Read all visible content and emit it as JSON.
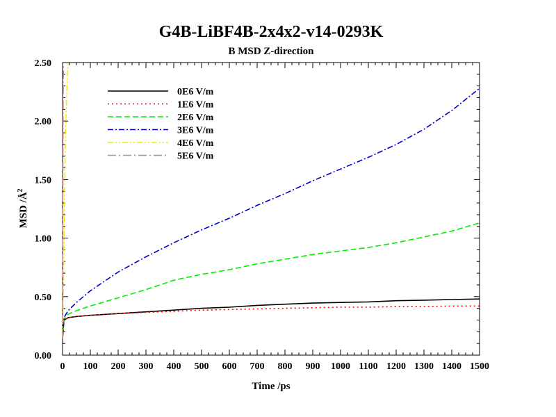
{
  "chart_data": {
    "type": "line",
    "title": "G4B-LiBF4B-2x4x2-v14-0293K",
    "subtitle": "B MSD Z-direction",
    "xlabel": "Time /ps",
    "ylabel": "MSD /Å",
    "ylabel_superscript": "2",
    "xlim": [
      0,
      1500
    ],
    "ylim": [
      0,
      2.5
    ],
    "x_ticks": [
      0,
      100,
      200,
      300,
      400,
      500,
      600,
      700,
      800,
      900,
      1000,
      1100,
      1200,
      1300,
      1400,
      1500
    ],
    "x_tick_labels": [
      "0",
      "100",
      "200",
      "300",
      "400",
      "500",
      "600",
      "700",
      "800",
      "900",
      "1000",
      "1100",
      "1200",
      "1300",
      "1400",
      "1500"
    ],
    "y_ticks": [
      0,
      0.5,
      1.0,
      1.5,
      2.0,
      2.5
    ],
    "y_tick_labels": [
      "0.00",
      "0.50",
      "1.00",
      "1.50",
      "2.00",
      "2.50"
    ],
    "grid": false,
    "legend_position": "top-left",
    "series": [
      {
        "name": "0E6 V/m",
        "color": "#000000",
        "dash": "solid",
        "x": [
          0,
          5,
          20,
          50,
          100,
          200,
          300,
          400,
          500,
          600,
          700,
          800,
          900,
          1000,
          1100,
          1200,
          1300,
          1400,
          1500
        ],
        "y": [
          0.14,
          0.3,
          0.32,
          0.33,
          0.34,
          0.355,
          0.37,
          0.385,
          0.4,
          0.41,
          0.425,
          0.435,
          0.445,
          0.45,
          0.455,
          0.465,
          0.47,
          0.475,
          0.48
        ]
      },
      {
        "name": "1E6 V/m",
        "color": "#ff0000",
        "dash": "dotted",
        "x": [
          0,
          5,
          20,
          50,
          100,
          200,
          300,
          400,
          500,
          600,
          700,
          800,
          900,
          1000,
          1100,
          1200,
          1300,
          1400,
          1500
        ],
        "y": [
          0.14,
          0.3,
          0.32,
          0.33,
          0.34,
          0.355,
          0.365,
          0.375,
          0.385,
          0.39,
          0.395,
          0.4,
          0.405,
          0.41,
          0.41,
          0.415,
          0.415,
          0.42,
          0.42
        ]
      },
      {
        "name": "2E6 V/m",
        "color": "#00ee00",
        "dash": "dashed",
        "x": [
          0,
          5,
          20,
          50,
          100,
          200,
          300,
          400,
          500,
          600,
          700,
          800,
          900,
          1000,
          1100,
          1200,
          1300,
          1400,
          1500
        ],
        "y": [
          0.14,
          0.31,
          0.35,
          0.38,
          0.42,
          0.49,
          0.56,
          0.64,
          0.69,
          0.73,
          0.78,
          0.82,
          0.86,
          0.89,
          0.92,
          0.96,
          1.01,
          1.06,
          1.13
        ]
      },
      {
        "name": "3E6 V/m",
        "color": "#0000cc",
        "dash": "dashdot",
        "x": [
          0,
          5,
          20,
          50,
          100,
          200,
          300,
          400,
          500,
          600,
          700,
          800,
          900,
          1000,
          1100,
          1200,
          1300,
          1400,
          1500
        ],
        "y": [
          0.14,
          0.32,
          0.38,
          0.45,
          0.55,
          0.71,
          0.84,
          0.96,
          1.07,
          1.17,
          1.28,
          1.38,
          1.49,
          1.59,
          1.69,
          1.8,
          1.93,
          2.09,
          2.28
        ]
      },
      {
        "name": "4E6 V/m",
        "color": "#eeee00",
        "dash": "dashdotdot",
        "x": [
          0,
          2,
          5,
          8,
          10,
          13,
          16,
          18,
          20
        ],
        "y": [
          0.14,
          0.4,
          0.9,
          1.5,
          1.8,
          2.1,
          2.3,
          2.42,
          2.5
        ]
      },
      {
        "name": "5E6 V/m",
        "color": "#cc8888",
        "dash": "longdashdot",
        "x": [
          0,
          0.5,
          1,
          1.5,
          2,
          3,
          4
        ],
        "y": [
          0.14,
          0.6,
          1.2,
          1.7,
          2.1,
          2.4,
          2.5
        ]
      }
    ]
  }
}
